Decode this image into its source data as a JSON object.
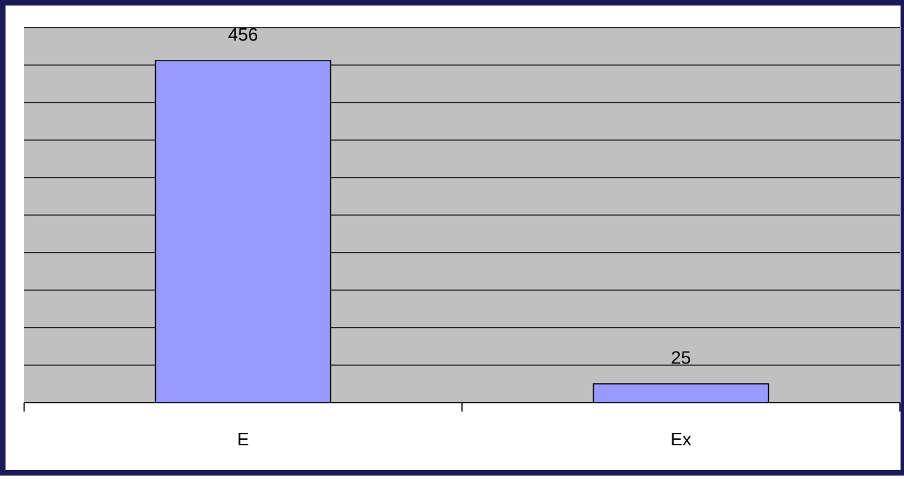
{
  "chart_data": {
    "type": "bar",
    "categories": [
      "E",
      "Ex"
    ],
    "values": [
      456,
      25
    ],
    "color": "#9999ff",
    "ylim": [
      0,
      500
    ],
    "yticks": [
      0,
      50,
      100,
      150,
      200,
      250,
      300,
      350,
      400,
      450,
      500
    ],
    "grid": true
  }
}
